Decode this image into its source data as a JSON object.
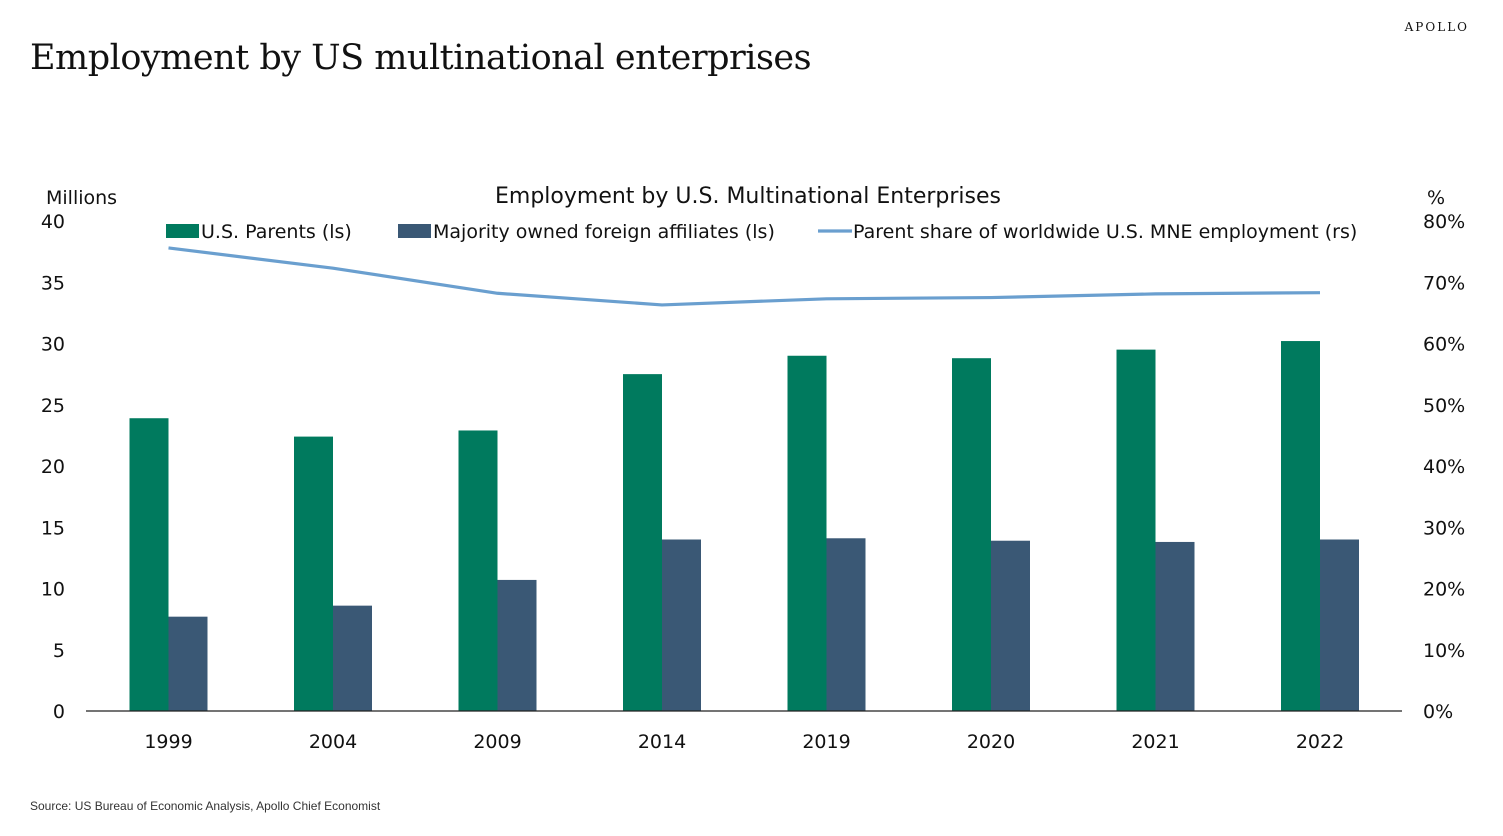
{
  "brand": "APOLLO",
  "slide_title": "Employment by US multinational enterprises",
  "source": "Source: US Bureau of Economic Analysis, Apollo Chief Economist",
  "chart_data": {
    "type": "bar",
    "title": "Employment by U.S. Multinational Enterprises",
    "left_axis_label": "Millions",
    "right_axis_label": "%",
    "categories": [
      "1999",
      "2004",
      "2009",
      "2014",
      "2019",
      "2020",
      "2021",
      "2022"
    ],
    "ylim_left": [
      0,
      40
    ],
    "yticks_left": [
      "0",
      "5",
      "10",
      "15",
      "20",
      "25",
      "30",
      "35",
      "40"
    ],
    "ylim_right": [
      0,
      80
    ],
    "yticks_right": [
      "0%",
      "10%",
      "20%",
      "30%",
      "40%",
      "50%",
      "60%",
      "70%",
      "80%"
    ],
    "legend_position": "top",
    "grid": false,
    "series": [
      {
        "name": "U.S. Parents (ls)",
        "type": "bar",
        "axis": "left",
        "color": "#007a5e",
        "values": [
          23.9,
          22.4,
          22.9,
          27.5,
          29.0,
          28.8,
          29.5,
          30.2
        ]
      },
      {
        "name": "Majority owned foreign affiliates (ls)",
        "type": "bar",
        "axis": "left",
        "color": "#3a5875",
        "values": [
          7.7,
          8.6,
          10.7,
          14.0,
          14.1,
          13.9,
          13.8,
          14.0
        ]
      },
      {
        "name": "Parent share of worldwide U.S. MNE employment (rs)",
        "type": "line",
        "axis": "right",
        "color": "#6a9fcf",
        "values": [
          75.6,
          72.3,
          68.2,
          66.3,
          67.3,
          67.5,
          68.1,
          68.3
        ]
      }
    ]
  }
}
